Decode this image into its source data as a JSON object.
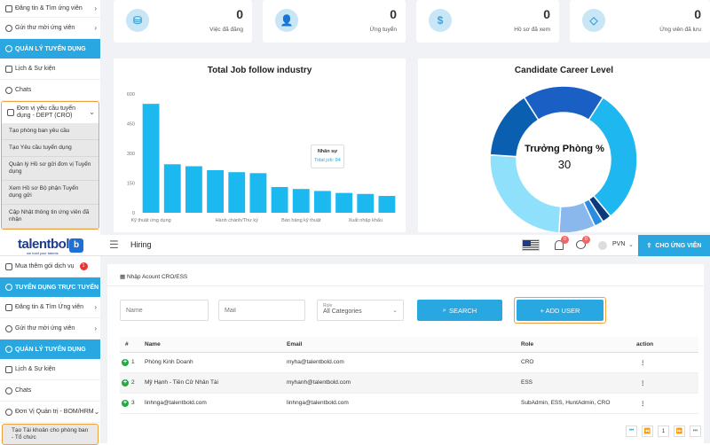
{
  "top": {
    "sidebar": {
      "items": [
        {
          "label": "Đăng tin & Tìm ứng viên",
          "chev": "›"
        },
        {
          "label": "Gửi thư mời ứng viên",
          "chev": "›"
        }
      ],
      "section": "QUẢN LÝ TUYỂN DỤNG",
      "items2": [
        {
          "label": "Lịch & Sự kiện"
        },
        {
          "label": "Chats"
        }
      ],
      "dept": {
        "label": "Đơn vị yêu cầu tuyển dụng - DEPT (CRO)",
        "chev": "⌄"
      },
      "subs": [
        "Tạo phòng ban yêu cầu",
        "Tạo Yêu cầu tuyển dụng",
        "Quản lý Hồ sơ gửi đơn vị Tuyển dụng",
        "Xem Hồ sơ Bộ phận Tuyển dụng gửi",
        "Cập Nhật thông tin ứng viên đã nhận"
      ]
    },
    "stats": [
      {
        "icon": "⛁",
        "value": "0",
        "label": "Việc đã đăng"
      },
      {
        "icon": "👤",
        "value": "0",
        "label": "Ứng tuyển"
      },
      {
        "icon": "$",
        "value": "0",
        "label": "Hồ sơ đã xem"
      },
      {
        "icon": "◇",
        "value": "0",
        "label": "Ứng viên đã lưu"
      }
    ],
    "bar_title": "Total Job follow industry",
    "donut_title": "Candidate Career Level",
    "donut_center_label": "Trưởng Phòng %",
    "donut_center_value": "30",
    "tooltip": {
      "title": "Nhân sự",
      "value": "Total job: 84"
    }
  },
  "chart_data": [
    {
      "type": "bar",
      "title": "Total Job follow industry",
      "categories": [
        "Kỹ thuật ứng dụng",
        "",
        "",
        "",
        "Hành chánh/Thư ký",
        "",
        "",
        "Bán hàng kỹ thuật",
        "",
        "",
        "Xuất nhập khẩu",
        ""
      ],
      "tick_labels": [
        "Kỹ thuật ứng dụng",
        "Hành chánh/Thư ký",
        "Bán hàng kỹ thuật",
        "Xuất nhập khẩu"
      ],
      "values": [
        550,
        245,
        235,
        215,
        205,
        200,
        130,
        120,
        110,
        100,
        95,
        85
      ],
      "ylim": [
        0,
        600
      ],
      "yticks": [
        "600",
        "450",
        "300",
        "150",
        "0"
      ],
      "color": "#1cb8f0"
    },
    {
      "type": "pie",
      "title": "Candidate Career Level",
      "slices": [
        {
          "label": "",
          "value": 18,
          "color": "#1a60c4"
        },
        {
          "label": "Trưởng Phòng",
          "value": 30,
          "color": "#1fb7ef"
        },
        {
          "label": "",
          "value": 2,
          "color": "#0b3a7a"
        },
        {
          "label": "",
          "value": 2,
          "color": "#2b8de0"
        },
        {
          "label": "",
          "value": 8,
          "color": "#8bb8ec"
        },
        {
          "label": "",
          "value": 25,
          "color": "#8fe0fb"
        },
        {
          "label": "",
          "value": 15,
          "color": "#0a5fb0"
        }
      ]
    }
  ],
  "header": {
    "logo": "talentbold",
    "logo_tag": "we bold your talents",
    "menu_icon": "☰",
    "title": "Hiring",
    "badge1": "0",
    "badge2": "0",
    "company": "PVN",
    "post_button": "CHO ỨNG VIÊN"
  },
  "bsidebar": {
    "buy": "Mua thêm gói dịch vụ",
    "buy_badge": "1",
    "sec1": "TUYỂN DỤNG TRỰC TUYẾN",
    "items": [
      {
        "label": "Đăng tin & Tìm Ứng viên",
        "chev": "›"
      },
      {
        "label": "Gửi thư mời ứng viên",
        "chev": "›"
      }
    ],
    "sec2": "QUẢN LÝ TUYỂN DỤNG",
    "items2": [
      {
        "label": "Lịch & Sự kiện"
      },
      {
        "label": "Chats"
      }
    ],
    "admin": {
      "label": "Đơn Vị Quản trị - BOM/HRM",
      "chev": "⌄"
    },
    "sub": "Tạo Tài khoản cho phòng ban - Tổ chức"
  },
  "main": {
    "card_title": "Nhập Acount CRO/ESS",
    "name_placeholder": "Name",
    "mail_placeholder": "Mail",
    "role_label": "Role",
    "role_value": "All Categories",
    "search_label": "SEARCH",
    "add_user_label": "+ ADD USER",
    "columns": [
      "#",
      "Name",
      "Email",
      "Role",
      "action"
    ],
    "rows": [
      {
        "num": "1",
        "name": "Phòng Kinh Doanh",
        "email": "myha@talentbold.com",
        "role": "CRO"
      },
      {
        "num": "2",
        "name": "Mỹ Hạnh - Tiền Cử Nhân Tài",
        "email": "myhanh@talentbold.com",
        "role": "ESS"
      },
      {
        "num": "3",
        "name": "linhnga@talentbold.com",
        "email": "linhnga@talentbold.com",
        "role": "SubAdmin, ESS, HuntAdmin, CRO"
      }
    ],
    "pagination": {
      "first": "⏮",
      "prev": "⏪",
      "page": "1",
      "next": "⏩",
      "last": "⏭"
    }
  }
}
